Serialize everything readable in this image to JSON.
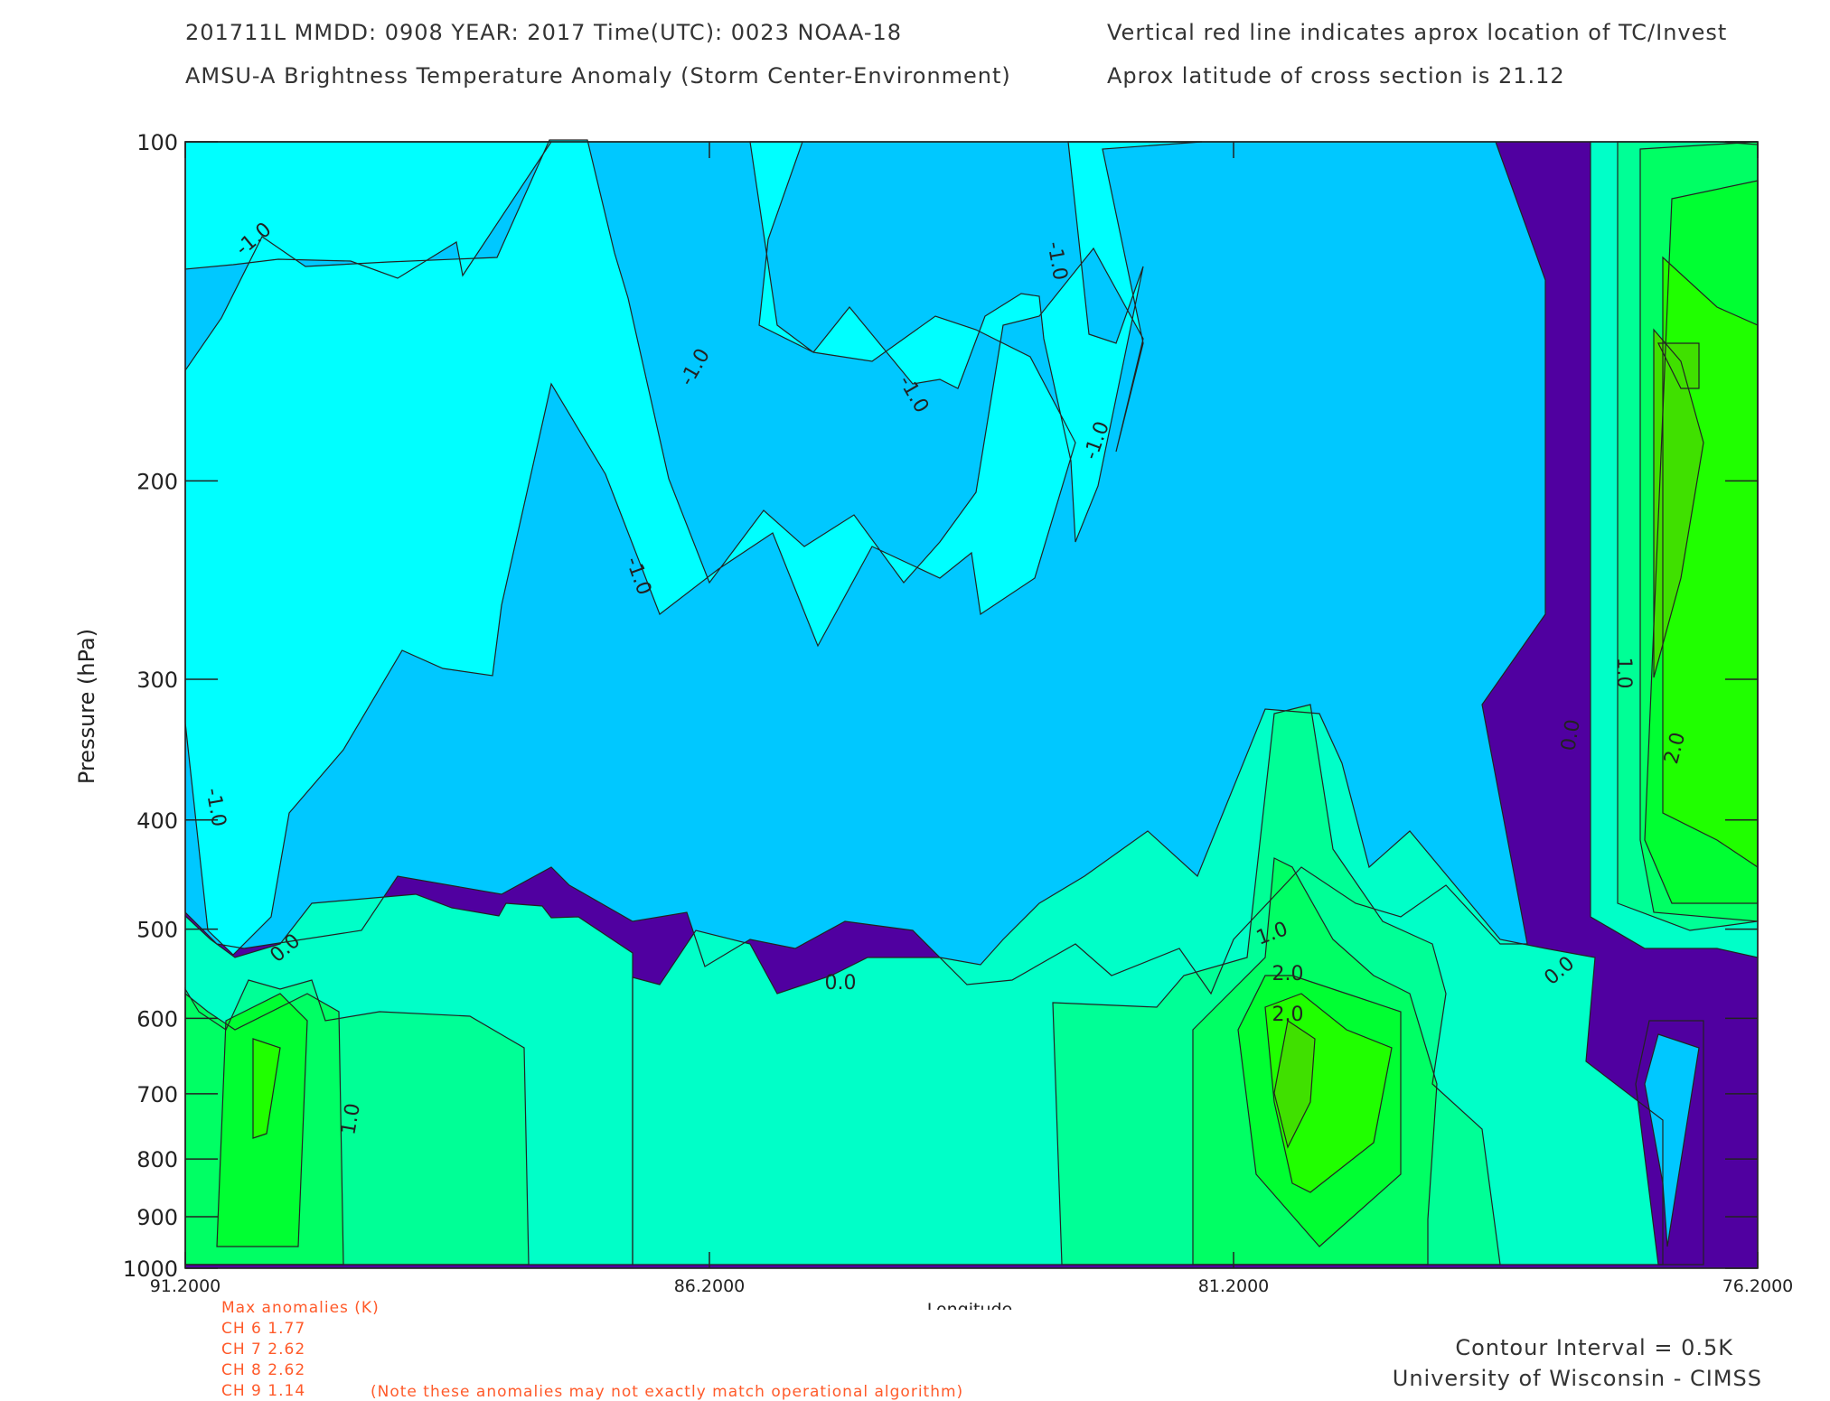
{
  "header": {
    "line1_left": "201711L  MMDD: 0908 YEAR: 2017 Time(UTC): 0023 NOAA-18",
    "line1_right": "Vertical red line indicates aprox location of TC/Invest",
    "line2_left": "AMSU-A Brightness Temperature Anomaly (Storm Center-Environment)",
    "line2_right": "Aprox latitude of cross section is 21.12"
  },
  "chart_data": {
    "type": "contour",
    "xlabel": "Longitude",
    "ylabel": "Pressure (hPa)",
    "x_range": [
      91.2,
      76.2
    ],
    "x_ticks": [
      "91.2000",
      "86.2000",
      "81.2000",
      "76.2000"
    ],
    "x_tick_values": [
      91.2,
      86.2,
      81.2,
      76.2
    ],
    "y_range": [
      1000,
      100
    ],
    "y_scale": "log",
    "y_ticks": [
      100,
      200,
      300,
      400,
      500,
      600,
      700,
      800,
      900,
      1000
    ],
    "contour_interval": 0.5,
    "levels": [
      {
        "min": -1.5,
        "max": -1.0,
        "color": "#5000a0"
      },
      {
        "min": -1.0,
        "max": -0.5,
        "color": "#00c8ff"
      },
      {
        "min": -0.5,
        "max": 0.0,
        "color": "#00ffff"
      },
      {
        "min": 0.0,
        "max": 0.5,
        "color": "#00ffc8"
      },
      {
        "min": 0.5,
        "max": 1.0,
        "color": "#00ff96"
      },
      {
        "min": 1.0,
        "max": 1.5,
        "color": "#00ff64"
      },
      {
        "min": 1.5,
        "max": 2.0,
        "color": "#00ff32"
      },
      {
        "min": 2.0,
        "max": 2.5,
        "color": "#20ff00"
      },
      {
        "min": 2.5,
        "max": 3.0,
        "color": "#40e000"
      }
    ],
    "contour_labels": [
      "-1.0",
      "-1.0",
      "-1.0",
      "-1.0",
      "-1.0",
      "-1.0",
      "-1.0",
      "0.0",
      "0.0",
      "0.0",
      "0.0",
      "1.0",
      "1.0",
      "2.0",
      "1.0",
      "2.0",
      "2.0"
    ]
  },
  "footer": {
    "anomaly_title": "Max anomalies (K)",
    "channels": [
      {
        "ch": "CH 6",
        "value": "1.77"
      },
      {
        "ch": "CH 7",
        "value": "2.62"
      },
      {
        "ch": "CH 8",
        "value": "2.62"
      },
      {
        "ch": "CH 9",
        "value": "1.14"
      }
    ],
    "note": "(Note these anomalies may not exactly match operational algorithm)",
    "contour_interval_text": "Contour Interval = 0.5K",
    "credit": "University of Wisconsin - CIMSS"
  }
}
